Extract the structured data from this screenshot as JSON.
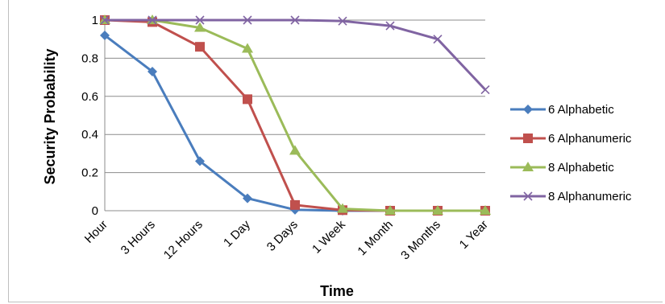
{
  "chart_data": {
    "type": "line",
    "title": "",
    "xlabel": "Time",
    "ylabel": "Security Probability",
    "categories": [
      "Hour",
      "3 Hours",
      "12 Hours",
      "1 Day",
      "3 Days",
      "1 Week",
      "1 Month",
      "3 Months",
      "1 Year"
    ],
    "ylim": [
      0,
      1
    ],
    "yticks": [
      "0",
      "0.2",
      "0.4",
      "0.6",
      "0.8",
      "1"
    ],
    "grid": true,
    "legend_position": "right",
    "series": [
      {
        "name": "6 Alphabetic",
        "marker": "diamond",
        "color": "#4a7dbd",
        "values": [
          0.92,
          0.73,
          0.26,
          0.065,
          0.005,
          0.0,
          0.0,
          0.0,
          0.0
        ]
      },
      {
        "name": "6 Alphanumeric",
        "marker": "square",
        "color": "#c0504d",
        "values": [
          1.0,
          0.99,
          0.86,
          0.585,
          0.03,
          0.003,
          0.0,
          0.0,
          0.0
        ]
      },
      {
        "name": "8 Alphabetic",
        "marker": "triangle",
        "color": "#9bbb59",
        "values": [
          1.0,
          1.0,
          0.96,
          0.85,
          0.315,
          0.01,
          0.0,
          0.0,
          0.0
        ]
      },
      {
        "name": "8 Alphanumeric",
        "marker": "x",
        "color": "#8064a2",
        "values": [
          1.0,
          1.0,
          1.0,
          1.0,
          1.0,
          0.995,
          0.97,
          0.9,
          0.635
        ]
      }
    ]
  }
}
